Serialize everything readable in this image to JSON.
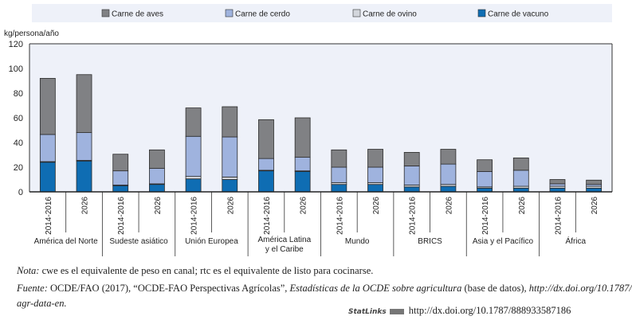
{
  "chart_data": {
    "type": "bar",
    "stacked": true,
    "ylabel": "kg/persona/año",
    "ylim": [
      0,
      120
    ],
    "yticks": [
      0,
      20,
      40,
      60,
      80,
      100,
      120
    ],
    "grid": false,
    "legend_position": "top",
    "groups": [
      "América del Norte",
      "Sudeste asiático",
      "Unión Europea",
      "América Latina y el Caribe",
      "Mundo",
      "BRICS",
      "Asia y el Pacífico",
      "África"
    ],
    "periods": [
      "2014-2016",
      "2026"
    ],
    "series": [
      {
        "name": "Carne de vacuno",
        "color": "#0f6db3",
        "values": [
          24,
          25,
          5,
          6,
          10.5,
          10,
          17,
          16.5,
          6,
          6,
          4,
          4.5,
          3,
          3,
          3,
          3
        ]
      },
      {
        "name": "Carne de ovino",
        "color": "#d3d6dc",
        "values": [
          0.5,
          0.5,
          0.5,
          0.5,
          2,
          2,
          0.5,
          0.5,
          1.5,
          1.5,
          1.5,
          1.5,
          1,
          1.5,
          1.5,
          1.5
        ]
      },
      {
        "name": "Carne de cerdo",
        "color": "#9fb3de",
        "values": [
          22,
          22.5,
          11.5,
          12.5,
          32.5,
          32.5,
          9.5,
          11,
          12.5,
          12.5,
          15.5,
          16.5,
          12.5,
          13,
          2,
          1.5
        ]
      },
      {
        "name": "Carne de aves",
        "color": "#808184",
        "values": [
          45.5,
          47,
          13.5,
          15,
          23,
          24.5,
          31.5,
          32,
          14,
          14.5,
          11,
          12,
          9.5,
          10,
          3.5,
          3.5
        ]
      }
    ],
    "legend_order": [
      "Carne de aves",
      "Carne de cerdo",
      "Carne de ovino",
      "Carne de vacuno"
    ]
  },
  "notes": {
    "nota_label": "Nota:",
    "nota_text": " cwe es el equivalente de peso en canal; rtc es el equivalente de listo para cocinarse.",
    "fuente_label": "Fuente:",
    "fuente_text1": " OCDE/FAO (2017), “OCDE-FAO Perspectivas Agrícolas”, ",
    "fuente_italic": "Estadísticas de la OCDE sobre agricultura",
    "fuente_text2": " (base de datos), ",
    "fuente_url1": "http://dx.doi.org/10.1787/",
    "fuente_url2": "agr-data-en.",
    "statlinks_label": "StatLinks",
    "statlinks_url": "http://dx.doi.org/10.1787/888933587186"
  }
}
